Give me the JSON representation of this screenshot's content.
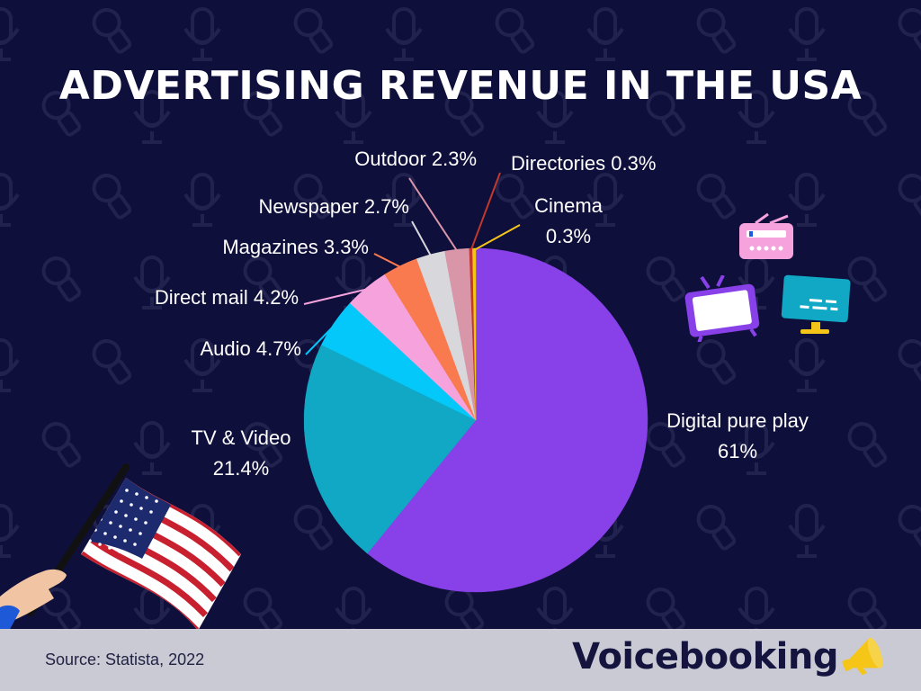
{
  "title": "ADVERTISING REVENUE IN THE USA",
  "colors": {
    "background": "#0f0f3c",
    "footer": "#c9cad3",
    "brand": "#14143f",
    "accent": "#f5c518"
  },
  "chart_data": {
    "type": "pie",
    "title": "ADVERTISING REVENUE IN THE USA",
    "unit": "%",
    "start": "top, clockwise",
    "slices": [
      {
        "name": "Digital pure play",
        "value": 61,
        "label": "Digital pure play",
        "value_label": "61%",
        "color": "#8840e8"
      },
      {
        "name": "TV & Video",
        "value": 21.4,
        "label": "TV & Video",
        "value_label": "21.4%",
        "color": "#10a8c4"
      },
      {
        "name": "Audio",
        "value": 4.7,
        "label": "Audio 4.7%",
        "value_label": "",
        "color": "#05c8fa"
      },
      {
        "name": "Direct mail",
        "value": 4.2,
        "label": "Direct mail 4.2%",
        "value_label": "",
        "color": "#f6a3dd"
      },
      {
        "name": "Magazines",
        "value": 3.3,
        "label": "Magazines 3.3%",
        "value_label": "",
        "color": "#fa7a4f"
      },
      {
        "name": "Newspaper",
        "value": 2.7,
        "label": "Newspaper 2.7%",
        "value_label": "",
        "color": "#d8d8dc"
      },
      {
        "name": "Outdoor",
        "value": 2.3,
        "label": "Outdoor 2.3%",
        "value_label": "",
        "color": "#d996a8"
      },
      {
        "name": "Directories",
        "value": 0.3,
        "label": "Directories 0.3%",
        "value_label": "",
        "color": "#c0392b"
      },
      {
        "name": "Cinema",
        "value": 0.3,
        "label": "Cinema",
        "value_label": "0.3%",
        "color": "#f5c518"
      }
    ]
  },
  "footer": {
    "source": "Source: Statista, 2022",
    "brand": "Voicebooking"
  },
  "icons": [
    "microphone-icon",
    "radio-icon",
    "tv-icon",
    "monitor-icon",
    "flag-icon",
    "megaphone-icon"
  ]
}
